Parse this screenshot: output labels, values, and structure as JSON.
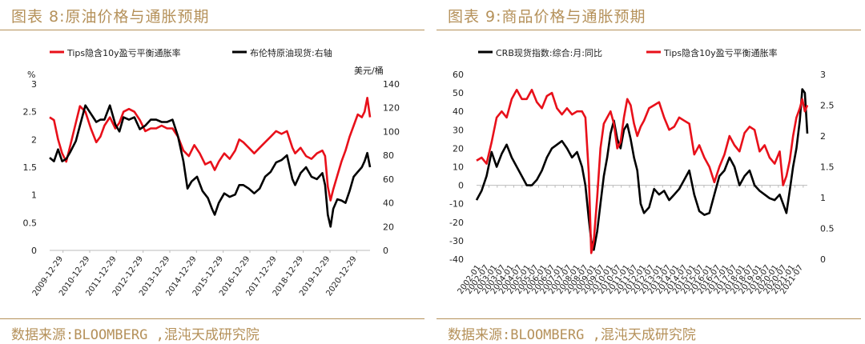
{
  "figures": [
    {
      "figure_title": "图表 8:原油价格与通胀预期",
      "source": "数据来源:BLOOMBERG ,混沌天成研究院"
    },
    {
      "figure_title": "图表 9:商品价格与通胀预期",
      "source": "数据来源:BLOOMBERG ,混沌天成研究院"
    }
  ],
  "chart_data": [
    {
      "type": "line",
      "left_axis_unit": "%",
      "right_axis_label": "美元/桶",
      "yticks_left": [
        "0",
        "0.5",
        "1",
        "1.5",
        "2",
        "2.5",
        "3"
      ],
      "yticks_right": [
        "0",
        "20",
        "40",
        "60",
        "80",
        "100",
        "120",
        "140"
      ],
      "ylim_left": [
        0,
        3
      ],
      "ylim_right": [
        0,
        140
      ],
      "xticks": [
        "2009-12-29",
        "2010-12-29",
        "2011-12-29",
        "2012-12-29",
        "2013-12-29",
        "2014-12-29",
        "2015-12-29",
        "2016-12-29",
        "2017-12-29",
        "2018-12-29",
        "2019-12-29",
        "2020-12-29"
      ],
      "xlim": [
        2009.99,
        2021.75
      ],
      "colors": {
        "red": "#e8101a",
        "black": "#000000"
      },
      "series": [
        {
          "name": "Tips隐含10y盈亏平衡通胀率",
          "axis": "left",
          "color": "#e8101a",
          "x": [
            2009.99,
            2010.15,
            2010.3,
            2010.45,
            2010.6,
            2010.75,
            2010.95,
            2011.1,
            2011.3,
            2011.5,
            2011.7,
            2011.85,
            2012.0,
            2012.2,
            2012.4,
            2012.55,
            2012.7,
            2012.9,
            2013.1,
            2013.3,
            2013.5,
            2013.7,
            2013.9,
            2014.1,
            2014.3,
            2014.5,
            2014.7,
            2014.9,
            2015.1,
            2015.3,
            2015.5,
            2015.7,
            2015.9,
            2016.05,
            2016.2,
            2016.4,
            2016.6,
            2016.8,
            2016.95,
            2017.1,
            2017.3,
            2017.5,
            2017.7,
            2017.9,
            2018.1,
            2018.3,
            2018.5,
            2018.7,
            2018.9,
            2019.0,
            2019.2,
            2019.4,
            2019.6,
            2019.8,
            2020.0,
            2020.1,
            2020.2,
            2020.3,
            2020.4,
            2020.55,
            2020.7,
            2020.85,
            2021.0,
            2021.15,
            2021.3,
            2021.45,
            2021.55,
            2021.65,
            2021.75
          ],
          "values": [
            2.4,
            2.35,
            2.0,
            1.75,
            1.6,
            1.9,
            2.3,
            2.6,
            2.5,
            2.2,
            1.95,
            2.05,
            2.25,
            2.4,
            2.2,
            2.3,
            2.5,
            2.55,
            2.5,
            2.35,
            2.15,
            2.2,
            2.2,
            2.25,
            2.2,
            2.2,
            2.05,
            1.8,
            1.7,
            1.9,
            1.75,
            1.55,
            1.6,
            1.45,
            1.6,
            1.75,
            1.65,
            1.8,
            2.0,
            1.95,
            1.85,
            1.75,
            1.85,
            1.95,
            2.05,
            2.15,
            2.1,
            2.15,
            1.85,
            1.75,
            1.85,
            1.7,
            1.65,
            1.75,
            1.8,
            1.7,
            1.15,
            0.9,
            1.1,
            1.35,
            1.6,
            1.8,
            2.05,
            2.25,
            2.45,
            2.4,
            2.5,
            2.75,
            2.4
          ]
        },
        {
          "name": "布伦特原油现货:右轴",
          "axis": "right",
          "color": "#000000",
          "x": [
            2009.99,
            2010.15,
            2010.3,
            2010.45,
            2010.6,
            2010.75,
            2010.95,
            2011.1,
            2011.3,
            2011.5,
            2011.7,
            2011.85,
            2012.0,
            2012.2,
            2012.4,
            2012.55,
            2012.7,
            2012.9,
            2013.1,
            2013.3,
            2013.5,
            2013.7,
            2013.9,
            2014.1,
            2014.3,
            2014.5,
            2014.7,
            2014.9,
            2015.05,
            2015.2,
            2015.4,
            2015.6,
            2015.8,
            2015.95,
            2016.05,
            2016.2,
            2016.4,
            2016.6,
            2016.8,
            2016.95,
            2017.1,
            2017.3,
            2017.5,
            2017.7,
            2017.9,
            2018.1,
            2018.3,
            2018.5,
            2018.7,
            2018.9,
            2019.0,
            2019.2,
            2019.4,
            2019.6,
            2019.8,
            2020.0,
            2020.1,
            2020.2,
            2020.3,
            2020.4,
            2020.55,
            2020.7,
            2020.85,
            2021.0,
            2021.15,
            2021.3,
            2021.45,
            2021.55,
            2021.65,
            2021.75
          ],
          "values": [
            78,
            75,
            85,
            75,
            77,
            83,
            92,
            105,
            122,
            115,
            108,
            110,
            110,
            122,
            106,
            100,
            112,
            110,
            112,
            102,
            105,
            110,
            110,
            108,
            108,
            110,
            96,
            75,
            52,
            58,
            62,
            50,
            44,
            35,
            30,
            40,
            48,
            45,
            47,
            55,
            55,
            52,
            48,
            52,
            62,
            66,
            74,
            76,
            80,
            60,
            55,
            65,
            70,
            62,
            60,
            65,
            55,
            30,
            20,
            35,
            43,
            42,
            40,
            50,
            62,
            66,
            70,
            75,
            82,
            70
          ]
        }
      ]
    },
    {
      "type": "line",
      "yticks_left": [
        "-40",
        "-30",
        "-20",
        "-10",
        "0",
        "10",
        "20",
        "30",
        "40",
        "50",
        "60"
      ],
      "yticks_right": [
        "0",
        "0.5",
        "1",
        "1.5",
        "2",
        "2.5",
        "3"
      ],
      "ylim_left": [
        -40,
        60
      ],
      "ylim_right": [
        0,
        3
      ],
      "xticks": [
        "2002-01",
        "2002-07",
        "2003-01",
        "2003-07",
        "2004-01",
        "2004-07",
        "2005-01",
        "2005-07",
        "2006-01",
        "2006-07",
        "2007-01",
        "2007-07",
        "2008-01",
        "2008-07",
        "2009-01",
        "2009-07",
        "2010-01",
        "2010-07",
        "2011-01",
        "2011-07",
        "2012-01",
        "2012-07",
        "2013-01",
        "2013-07",
        "2014-01",
        "2014-07",
        "2015-01",
        "2015-07",
        "2016-01",
        "2016-07",
        "2017-01",
        "2017-07",
        "2018-01",
        "2018-07",
        "2019-01",
        "2019-07",
        "2020-01",
        "2020-07",
        "2021-01",
        "2021-07"
      ],
      "xlim": [
        2002.0,
        2021.75
      ],
      "colors": {
        "red": "#e8101a",
        "black": "#000000"
      },
      "series": [
        {
          "name": "CRB现货指数:综合:月:同比",
          "axis": "left",
          "color": "#000000",
          "x": [
            2002.0,
            2002.3,
            2002.6,
            2002.9,
            2003.2,
            2003.5,
            2003.8,
            2004.1,
            2004.4,
            2004.7,
            2005.0,
            2005.3,
            2005.6,
            2005.9,
            2006.2,
            2006.5,
            2006.8,
            2007.1,
            2007.4,
            2007.7,
            2008.0,
            2008.3,
            2008.5,
            2008.7,
            2008.85,
            2009.0,
            2009.2,
            2009.4,
            2009.6,
            2009.8,
            2010.0,
            2010.2,
            2010.4,
            2010.6,
            2010.8,
            2011.0,
            2011.2,
            2011.4,
            2011.6,
            2011.8,
            2012.0,
            2012.3,
            2012.6,
            2012.9,
            2013.2,
            2013.5,
            2013.8,
            2014.1,
            2014.4,
            2014.7,
            2015.0,
            2015.3,
            2015.6,
            2015.9,
            2016.2,
            2016.5,
            2016.8,
            2017.1,
            2017.4,
            2017.7,
            2018.0,
            2018.3,
            2018.6,
            2018.9,
            2019.2,
            2019.5,
            2019.8,
            2020.1,
            2020.3,
            2020.5,
            2020.7,
            2020.9,
            2021.1,
            2021.3,
            2021.45,
            2021.6,
            2021.75
          ],
          "values": [
            -8,
            -3,
            5,
            18,
            10,
            17,
            22,
            15,
            10,
            5,
            0,
            0,
            3,
            8,
            15,
            20,
            22,
            24,
            20,
            15,
            18,
            10,
            0,
            -18,
            -30,
            -35,
            -25,
            -10,
            5,
            15,
            28,
            35,
            25,
            20,
            30,
            33,
            25,
            15,
            8,
            -10,
            -15,
            -12,
            -2,
            -5,
            -3,
            -8,
            -5,
            -2,
            3,
            8,
            -5,
            -14,
            -16,
            -15,
            -5,
            5,
            8,
            15,
            10,
            0,
            5,
            8,
            0,
            -3,
            -5,
            -7,
            -8,
            -5,
            -10,
            -15,
            -3,
            10,
            20,
            35,
            52,
            50,
            28
          ]
        },
        {
          "name": "Tips隐含10y盈亏平衡通胀率",
          "axis": "right",
          "color": "#e8101a",
          "x": [
            2002.0,
            2002.3,
            2002.6,
            2002.9,
            2003.2,
            2003.5,
            2003.8,
            2004.1,
            2004.4,
            2004.7,
            2005.0,
            2005.3,
            2005.6,
            2005.9,
            2006.2,
            2006.5,
            2006.8,
            2007.1,
            2007.4,
            2007.7,
            2008.0,
            2008.3,
            2008.5,
            2008.7,
            2008.85,
            2009.0,
            2009.2,
            2009.4,
            2009.6,
            2009.8,
            2010.0,
            2010.2,
            2010.4,
            2010.6,
            2010.8,
            2011.0,
            2011.2,
            2011.4,
            2011.6,
            2011.8,
            2012.0,
            2012.3,
            2012.6,
            2012.9,
            2013.2,
            2013.5,
            2013.8,
            2014.1,
            2014.4,
            2014.7,
            2015.0,
            2015.3,
            2015.6,
            2015.9,
            2016.2,
            2016.5,
            2016.8,
            2017.1,
            2017.4,
            2017.7,
            2018.0,
            2018.3,
            2018.6,
            2018.9,
            2019.2,
            2019.5,
            2019.8,
            2020.1,
            2020.3,
            2020.5,
            2020.7,
            2020.9,
            2021.1,
            2021.3,
            2021.45,
            2021.6,
            2021.75
          ],
          "values": [
            1.6,
            1.65,
            1.55,
            1.9,
            2.3,
            2.4,
            2.3,
            2.6,
            2.75,
            2.6,
            2.6,
            2.75,
            2.55,
            2.45,
            2.65,
            2.7,
            2.45,
            2.35,
            2.45,
            2.35,
            2.4,
            2.4,
            2.3,
            1.4,
            0.1,
            0.3,
            1.0,
            1.8,
            2.2,
            2.3,
            2.4,
            2.2,
            1.8,
            1.9,
            2.3,
            2.6,
            2.5,
            2.2,
            2.0,
            2.15,
            2.25,
            2.45,
            2.5,
            2.55,
            2.3,
            2.1,
            2.15,
            2.3,
            2.25,
            2.2,
            1.7,
            1.85,
            1.65,
            1.5,
            1.25,
            1.5,
            1.7,
            2.0,
            1.85,
            1.75,
            2.05,
            2.15,
            2.1,
            1.75,
            1.85,
            1.65,
            1.55,
            1.75,
            1.2,
            1.35,
            1.6,
            2.0,
            2.3,
            2.45,
            2.6,
            2.4,
            2.5
          ]
        }
      ]
    }
  ]
}
